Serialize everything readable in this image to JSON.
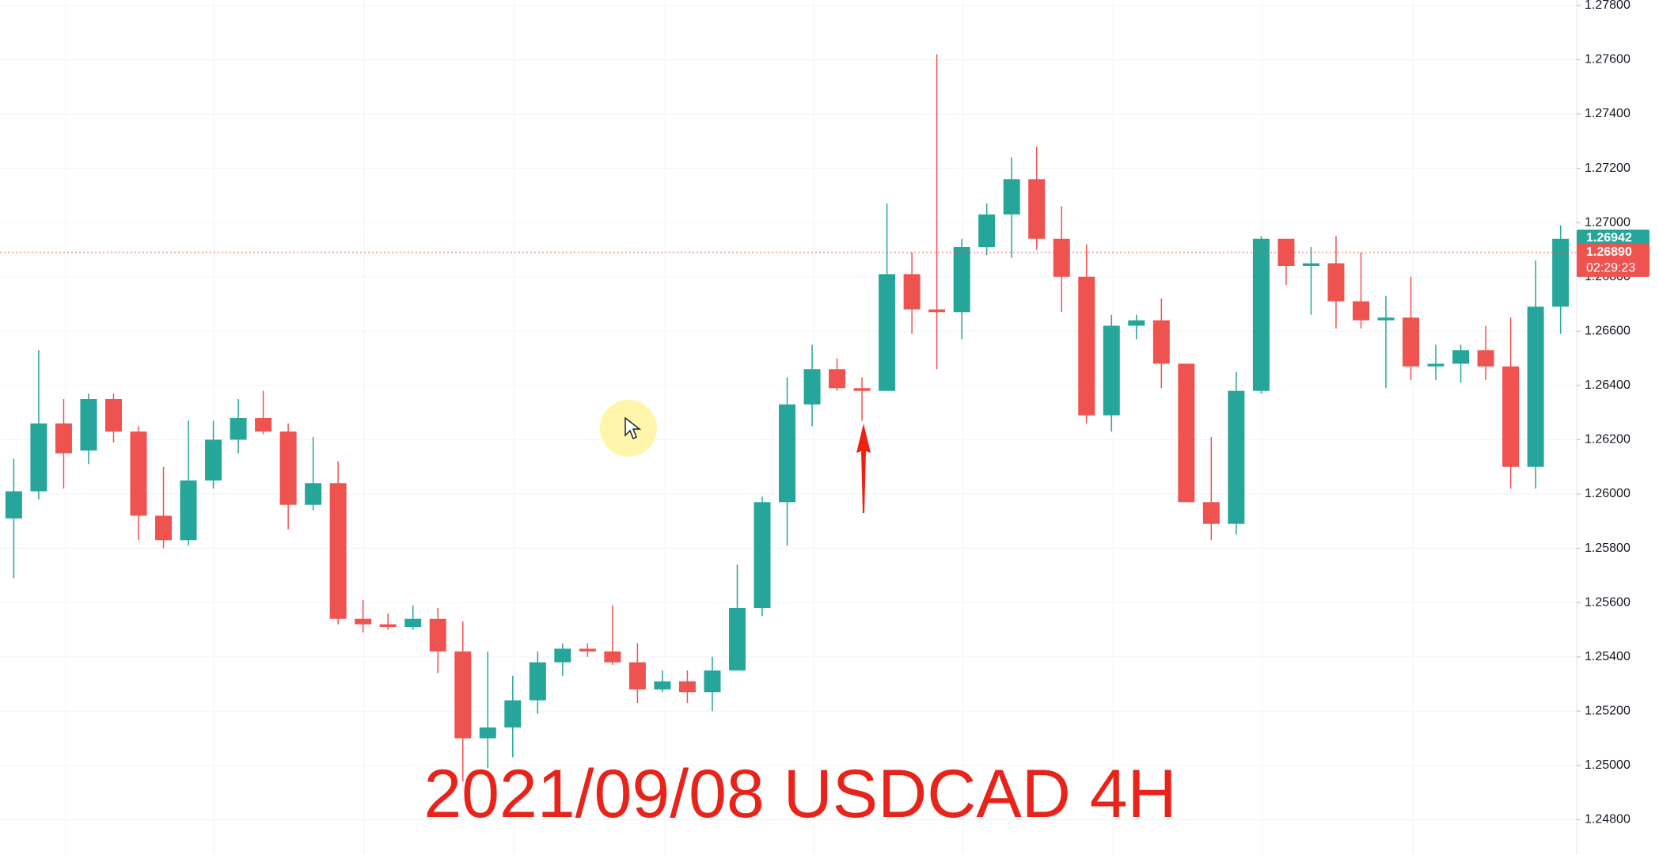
{
  "chart_data": {
    "type": "candlestick",
    "title": "2021/09/08  USDCAD 4H",
    "up_color": "#26a69a",
    "down_color": "#ef5350",
    "ylim": [
      1.2467,
      1.2782
    ],
    "yticks": [
      {
        "value": 1.278,
        "label": "1.27800"
      },
      {
        "value": 1.276,
        "label": "1.27600"
      },
      {
        "value": 1.274,
        "label": "1.27400"
      },
      {
        "value": 1.272,
        "label": "1.27200"
      },
      {
        "value": 1.27,
        "label": "1.27000"
      },
      {
        "value": 1.268,
        "label": "1.26800"
      },
      {
        "value": 1.266,
        "label": "1.26600"
      },
      {
        "value": 1.264,
        "label": "1.26400"
      },
      {
        "value": 1.262,
        "label": "1.26200"
      },
      {
        "value": 1.26,
        "label": "1.26000"
      },
      {
        "value": 1.258,
        "label": "1.25800"
      },
      {
        "value": 1.256,
        "label": "1.25600"
      },
      {
        "value": 1.254,
        "label": "1.25400"
      },
      {
        "value": 1.252,
        "label": "1.25200"
      },
      {
        "value": 1.25,
        "label": "1.25000"
      },
      {
        "value": 1.248,
        "label": "1.24800"
      }
    ],
    "grid": true,
    "price_labels": [
      {
        "value": 1.26942,
        "label": "1.26942",
        "color": "#26a69a"
      },
      {
        "value": 1.2689,
        "label": "1.26890",
        "sublabel": "02:29:23",
        "color": "#ef5350"
      }
    ],
    "open": [
      1.2591,
      1.2601,
      1.2626,
      1.2616,
      1.2635,
      1.2623,
      1.2592,
      1.2583,
      1.2605,
      1.262,
      1.2628,
      1.2623,
      1.2596,
      1.2604,
      1.2554,
      1.2552,
      1.2551,
      1.2554,
      1.2542,
      1.251,
      1.2514,
      1.2524,
      1.2538,
      1.2543,
      1.2542,
      1.2538,
      1.2528,
      1.2531,
      1.2527,
      1.2535,
      1.2558,
      1.2597,
      1.2633,
      1.2646,
      1.2639,
      1.2638,
      1.2681,
      1.2668,
      1.2667,
      1.2691,
      1.2703,
      1.2716,
      1.2694,
      1.268,
      1.2629,
      1.2662,
      1.2664,
      1.2648,
      1.2597,
      1.2589,
      1.2638,
      1.2694,
      1.2684,
      1.2685,
      1.2671,
      1.2664,
      1.2665,
      1.2647,
      1.2648,
      1.2653,
      1.2647,
      1.261,
      1.2669
    ],
    "high": [
      1.2613,
      1.2653,
      1.2635,
      1.2637,
      1.2637,
      1.2625,
      1.261,
      1.2627,
      1.2627,
      1.2635,
      1.2638,
      1.2626,
      1.2621,
      1.2612,
      1.2561,
      1.2556,
      1.2559,
      1.2558,
      1.2553,
      1.2542,
      1.2533,
      1.2542,
      1.2545,
      1.2545,
      1.2559,
      1.2545,
      1.2535,
      1.2535,
      1.254,
      1.2574,
      1.2599,
      1.2643,
      1.2655,
      1.265,
      1.2643,
      1.2707,
      1.2689,
      1.2762,
      1.2694,
      1.2707,
      1.2724,
      1.2728,
      1.2706,
      1.2692,
      1.2666,
      1.2666,
      1.2672,
      1.2648,
      1.2621,
      1.2645,
      1.2695,
      1.2694,
      1.2691,
      1.2695,
      1.2689,
      1.2673,
      1.268,
      1.2655,
      1.2655,
      1.2662,
      1.2665,
      1.2686,
      1.2699
    ],
    "low": [
      1.2569,
      1.2598,
      1.2602,
      1.2611,
      1.2619,
      1.2583,
      1.258,
      1.2581,
      1.2602,
      1.2615,
      1.2622,
      1.2587,
      1.2594,
      1.2552,
      1.2549,
      1.255,
      1.255,
      1.2534,
      1.2494,
      1.2499,
      1.2503,
      1.2519,
      1.2533,
      1.254,
      1.2537,
      1.2523,
      1.2527,
      1.2523,
      1.252,
      1.2535,
      1.2555,
      1.2581,
      1.2625,
      1.2638,
      1.2627,
      1.2638,
      1.2659,
      1.2646,
      1.2657,
      1.2688,
      1.2687,
      1.269,
      1.2667,
      1.2626,
      1.2623,
      1.2657,
      1.2639,
      1.2597,
      1.2583,
      1.2585,
      1.2637,
      1.2677,
      1.2666,
      1.2661,
      1.2661,
      1.2639,
      1.2642,
      1.2642,
      1.2641,
      1.2642,
      1.2602,
      1.2602,
      1.2659
    ],
    "close": [
      1.2601,
      1.2626,
      1.2615,
      1.2635,
      1.2623,
      1.2592,
      1.2583,
      1.2605,
      1.262,
      1.2628,
      1.2623,
      1.2596,
      1.2604,
      1.2554,
      1.2552,
      1.2551,
      1.2554,
      1.2542,
      1.251,
      1.2514,
      1.2524,
      1.2538,
      1.2543,
      1.2542,
      1.2538,
      1.2528,
      1.2531,
      1.2527,
      1.2535,
      1.2558,
      1.2597,
      1.2633,
      1.2646,
      1.2639,
      1.2638,
      1.2681,
      1.2668,
      1.2667,
      1.2691,
      1.2703,
      1.2716,
      1.2694,
      1.268,
      1.2629,
      1.2662,
      1.2664,
      1.2648,
      1.2597,
      1.2589,
      1.2638,
      1.2694,
      1.2684,
      1.2685,
      1.2671,
      1.2664,
      1.2665,
      1.2647,
      1.2648,
      1.2653,
      1.2647,
      1.261,
      1.2669,
      1.2694
    ]
  }
}
